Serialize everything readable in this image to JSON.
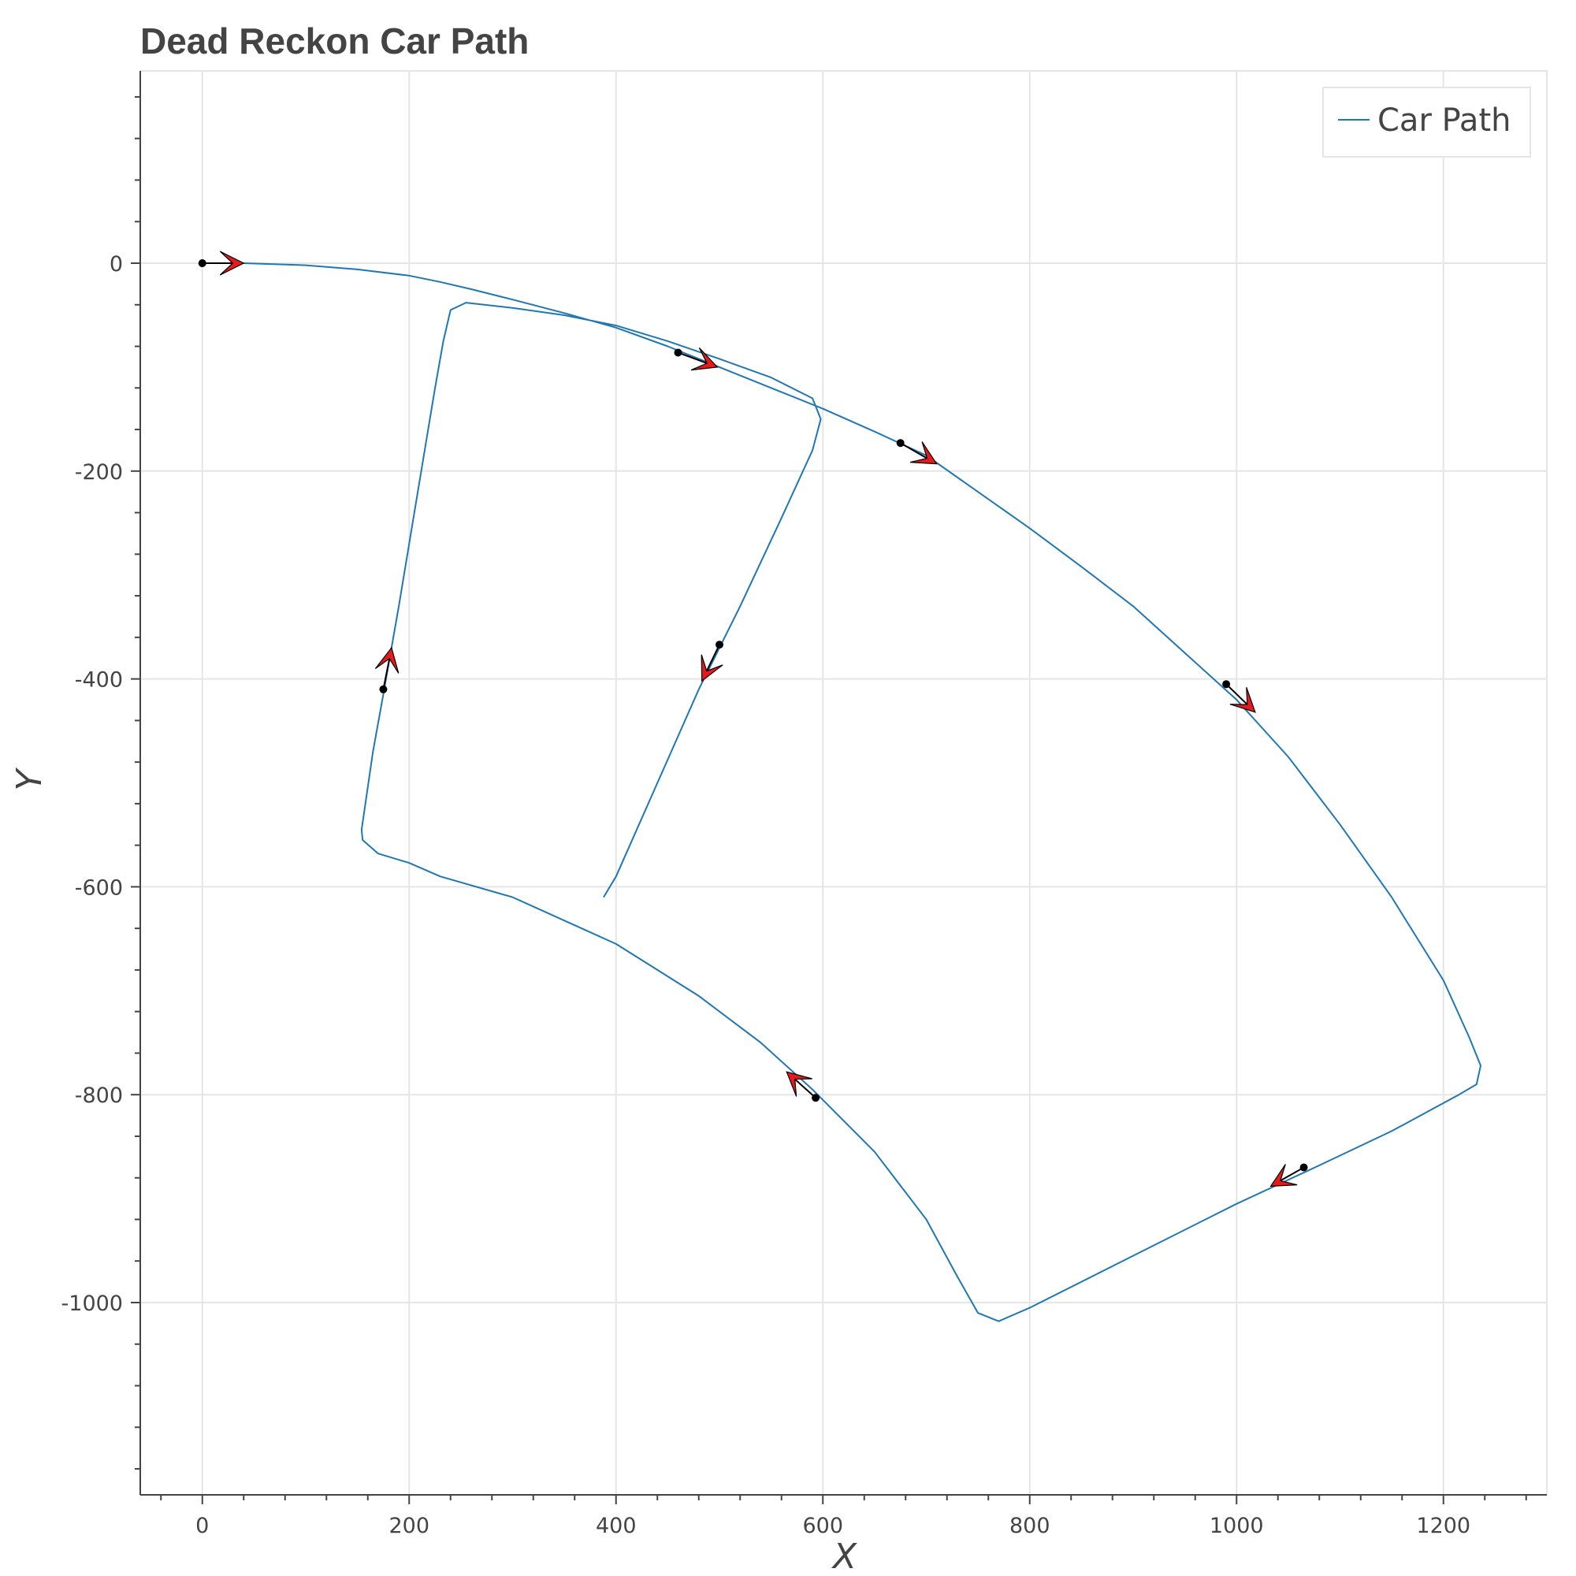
{
  "chart_data": {
    "type": "line",
    "title": "Dead Reckon Car Path",
    "xlabel": "X",
    "ylabel": "Y",
    "xlim": [
      -60,
      1300
    ],
    "ylim": [
      -1185,
      185
    ],
    "x_ticks": [
      0,
      200,
      400,
      600,
      800,
      1000,
      1200
    ],
    "y_ticks": [
      0,
      -200,
      -400,
      -600,
      -800,
      -1000
    ],
    "grid": true,
    "legend_position": "top-right",
    "colors": {
      "line": "#1f77b4",
      "arrow_fill": "#e41a1c",
      "marker": "#000000",
      "grid": "#e5e5e5",
      "axis": "#444444"
    },
    "series": [
      {
        "name": "Car Path",
        "points": [
          [
            0,
            0
          ],
          [
            40,
            0
          ],
          [
            100,
            -2
          ],
          [
            150,
            -6
          ],
          [
            200,
            -12
          ],
          [
            230,
            -18
          ],
          [
            260,
            -25
          ],
          [
            300,
            -35
          ],
          [
            350,
            -48
          ],
          [
            400,
            -62
          ],
          [
            450,
            -80
          ],
          [
            500,
            -100
          ],
          [
            550,
            -120
          ],
          [
            600,
            -140
          ],
          [
            650,
            -162
          ],
          [
            700,
            -185
          ],
          [
            750,
            -220
          ],
          [
            800,
            -255
          ],
          [
            850,
            -292
          ],
          [
            900,
            -330
          ],
          [
            950,
            -375
          ],
          [
            1000,
            -420
          ],
          [
            1050,
            -475
          ],
          [
            1100,
            -540
          ],
          [
            1150,
            -610
          ],
          [
            1200,
            -690
          ],
          [
            1225,
            -745
          ],
          [
            1236,
            -772
          ],
          [
            1232,
            -790
          ],
          [
            1215,
            -800
          ],
          [
            1150,
            -835
          ],
          [
            1080,
            -868
          ],
          [
            1000,
            -905
          ],
          [
            900,
            -955
          ],
          [
            800,
            -1005
          ],
          [
            770,
            -1018
          ],
          [
            750,
            -1010
          ],
          [
            730,
            -975
          ],
          [
            700,
            -920
          ],
          [
            650,
            -855
          ],
          [
            590,
            -795
          ],
          [
            540,
            -750
          ],
          [
            480,
            -705
          ],
          [
            400,
            -655
          ],
          [
            300,
            -610
          ],
          [
            230,
            -590
          ],
          [
            200,
            -577
          ],
          [
            170,
            -568
          ],
          [
            155,
            -555
          ],
          [
            154,
            -545
          ],
          [
            165,
            -470
          ],
          [
            175,
            -415
          ],
          [
            190,
            -330
          ],
          [
            205,
            -240
          ],
          [
            225,
            -120
          ],
          [
            233,
            -75
          ],
          [
            240,
            -45
          ],
          [
            255,
            -38
          ],
          [
            300,
            -43
          ],
          [
            350,
            -50
          ],
          [
            400,
            -60
          ],
          [
            450,
            -75
          ],
          [
            500,
            -92
          ],
          [
            550,
            -110
          ],
          [
            590,
            -130
          ],
          [
            598,
            -150
          ],
          [
            590,
            -180
          ],
          [
            560,
            -245
          ],
          [
            520,
            -330
          ],
          [
            480,
            -410
          ],
          [
            440,
            -500
          ],
          [
            400,
            -590
          ],
          [
            388,
            -610
          ]
        ]
      }
    ],
    "arrows": [
      {
        "from": [
          0,
          0
        ],
        "to": [
          40,
          0
        ]
      },
      {
        "from": [
          460,
          -86
        ],
        "to": [
          498,
          -100
        ]
      },
      {
        "from": [
          675,
          -173
        ],
        "to": [
          710,
          -193
        ]
      },
      {
        "from": [
          990,
          -405
        ],
        "to": [
          1018,
          -432
        ]
      },
      {
        "from": [
          1065,
          -870
        ],
        "to": [
          1033,
          -888
        ]
      },
      {
        "from": [
          593,
          -803
        ],
        "to": [
          565,
          -778
        ]
      },
      {
        "from": [
          500,
          -367
        ],
        "to": [
          483,
          -402
        ]
      },
      {
        "from": [
          175,
          -410
        ],
        "to": [
          183,
          -370
        ]
      }
    ]
  }
}
